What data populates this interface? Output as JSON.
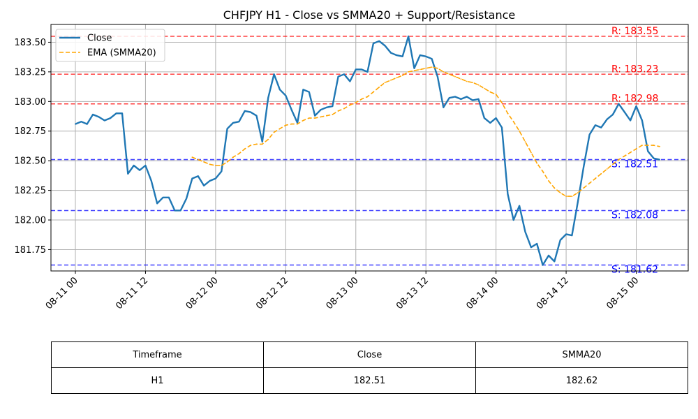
{
  "chart_data": {
    "type": "line",
    "title": "CHFJPY H1 - Close vs SMMA20 + Support/Resistance",
    "xlabel": "",
    "ylabel": "",
    "ylim": [
      181.57,
      183.65
    ],
    "y_ticks": [
      181.75,
      182.0,
      182.25,
      182.5,
      182.75,
      183.0,
      183.25,
      183.5
    ],
    "y_tick_labels": [
      "181.75",
      "182.00",
      "182.25",
      "182.50",
      "182.75",
      "183.00",
      "183.25",
      "183.50"
    ],
    "x_tick_labels": [
      "08-11 00",
      "08-11 12",
      "08-12 00",
      "08-12 12",
      "08-13 00",
      "08-13 12",
      "08-14 00",
      "08-14 12",
      "08-15 00"
    ],
    "grid": true,
    "legend_position": "top-left",
    "series": [
      {
        "name": "Close",
        "color": "#1f77b4",
        "style": "solid",
        "x_hours": [
          0,
          1,
          2,
          3,
          4,
          5,
          6,
          7,
          8,
          9,
          10,
          11,
          12,
          13,
          14,
          15,
          16,
          17,
          18,
          19,
          20,
          21,
          22,
          23,
          24,
          25,
          26,
          27,
          28,
          29,
          30,
          31,
          32,
          33,
          34,
          35,
          36,
          37,
          38,
          39,
          40,
          41,
          42,
          43,
          44,
          45,
          46,
          47,
          48,
          49,
          50,
          51,
          52,
          53,
          54,
          55,
          56,
          57,
          58,
          59,
          60,
          61,
          62,
          63,
          64,
          65,
          66,
          67,
          68,
          69,
          70,
          71,
          72,
          73,
          74,
          75,
          76,
          77,
          78,
          79,
          80,
          81,
          82,
          83,
          84,
          85,
          86,
          87,
          88,
          89,
          90,
          91,
          92,
          93,
          94,
          95,
          96,
          97,
          98,
          99,
          100
        ],
        "values": [
          182.81,
          182.83,
          182.81,
          182.89,
          182.87,
          182.84,
          182.86,
          182.9,
          182.9,
          182.39,
          182.46,
          182.42,
          182.46,
          182.33,
          182.14,
          182.19,
          182.19,
          182.08,
          182.08,
          182.18,
          182.35,
          182.37,
          182.29,
          182.33,
          182.35,
          182.41,
          182.77,
          182.82,
          182.83,
          182.92,
          182.91,
          182.88,
          182.66,
          183.03,
          183.23,
          183.1,
          183.05,
          182.93,
          182.82,
          183.1,
          183.08,
          182.88,
          182.93,
          182.95,
          182.96,
          183.21,
          183.23,
          183.17,
          183.27,
          183.27,
          183.25,
          183.49,
          183.51,
          183.47,
          183.41,
          183.39,
          183.38,
          183.55,
          183.28,
          183.39,
          183.38,
          183.36,
          183.21,
          182.95,
          183.03,
          183.04,
          183.02,
          183.04,
          183.01,
          183.02,
          182.86,
          182.82,
          182.86,
          182.78,
          182.22,
          182.0,
          182.12,
          181.9,
          181.77,
          181.8,
          181.62,
          181.7,
          181.65,
          181.83,
          181.88,
          181.87,
          182.15,
          182.45,
          182.72,
          182.8,
          182.78,
          182.85,
          182.89,
          182.98,
          182.91,
          182.84,
          182.96,
          182.84,
          182.58,
          182.52,
          182.51
        ]
      },
      {
        "name": "EMA (SMMA20)",
        "color": "#ffa500",
        "style": "dashed",
        "x_hours": [
          20,
          21,
          22,
          23,
          24,
          25,
          26,
          27,
          28,
          29,
          30,
          31,
          32,
          33,
          34,
          35,
          36,
          37,
          38,
          39,
          40,
          41,
          42,
          43,
          44,
          45,
          46,
          47,
          48,
          49,
          50,
          51,
          52,
          53,
          54,
          55,
          56,
          57,
          58,
          59,
          60,
          61,
          62,
          63,
          64,
          65,
          66,
          67,
          68,
          69,
          70,
          71,
          72,
          73,
          74,
          75,
          76,
          77,
          78,
          79,
          80,
          81,
          82,
          83,
          84,
          85,
          86,
          87,
          88,
          89,
          90,
          91,
          92,
          93,
          94,
          95,
          96,
          97,
          98,
          99,
          100
        ],
        "values": [
          182.53,
          182.51,
          182.49,
          182.47,
          182.46,
          182.46,
          182.49,
          182.53,
          182.56,
          182.6,
          182.63,
          182.64,
          182.64,
          182.68,
          182.74,
          182.77,
          182.8,
          182.81,
          182.81,
          182.84,
          182.86,
          182.86,
          182.87,
          182.88,
          182.89,
          182.92,
          182.94,
          182.97,
          182.99,
          183.02,
          183.04,
          183.08,
          183.12,
          183.16,
          183.18,
          183.2,
          183.22,
          183.25,
          183.26,
          183.27,
          183.28,
          183.29,
          183.28,
          183.25,
          183.23,
          183.21,
          183.19,
          183.17,
          183.16,
          183.14,
          183.11,
          183.08,
          183.06,
          182.99,
          182.9,
          182.83,
          182.75,
          182.66,
          182.57,
          182.48,
          182.41,
          182.33,
          182.27,
          182.23,
          182.2,
          182.2,
          182.23,
          182.27,
          182.31,
          182.35,
          182.39,
          182.43,
          182.47,
          182.51,
          182.54,
          182.57,
          182.6,
          182.63,
          182.63,
          182.63,
          182.62
        ]
      }
    ],
    "levels": [
      {
        "kind": "resistance",
        "value": 183.55,
        "label": "R: 183.55",
        "color": "#ff0000"
      },
      {
        "kind": "resistance",
        "value": 183.23,
        "label": "R: 183.23",
        "color": "#ff0000"
      },
      {
        "kind": "resistance",
        "value": 182.98,
        "label": "R: 182.98",
        "color": "#ff0000"
      },
      {
        "kind": "support",
        "value": 182.51,
        "label": "S: 182.51",
        "color": "#0000ff"
      },
      {
        "kind": "support",
        "value": 182.08,
        "label": "S: 182.08",
        "color": "#0000ff"
      },
      {
        "kind": "support",
        "value": 181.62,
        "label": "S: 181.62",
        "color": "#0000ff"
      }
    ]
  },
  "table": {
    "headers": [
      "Timeframe",
      "Close",
      "SMMA20"
    ],
    "rows": [
      [
        "H1",
        "182.51",
        "182.62"
      ]
    ]
  }
}
